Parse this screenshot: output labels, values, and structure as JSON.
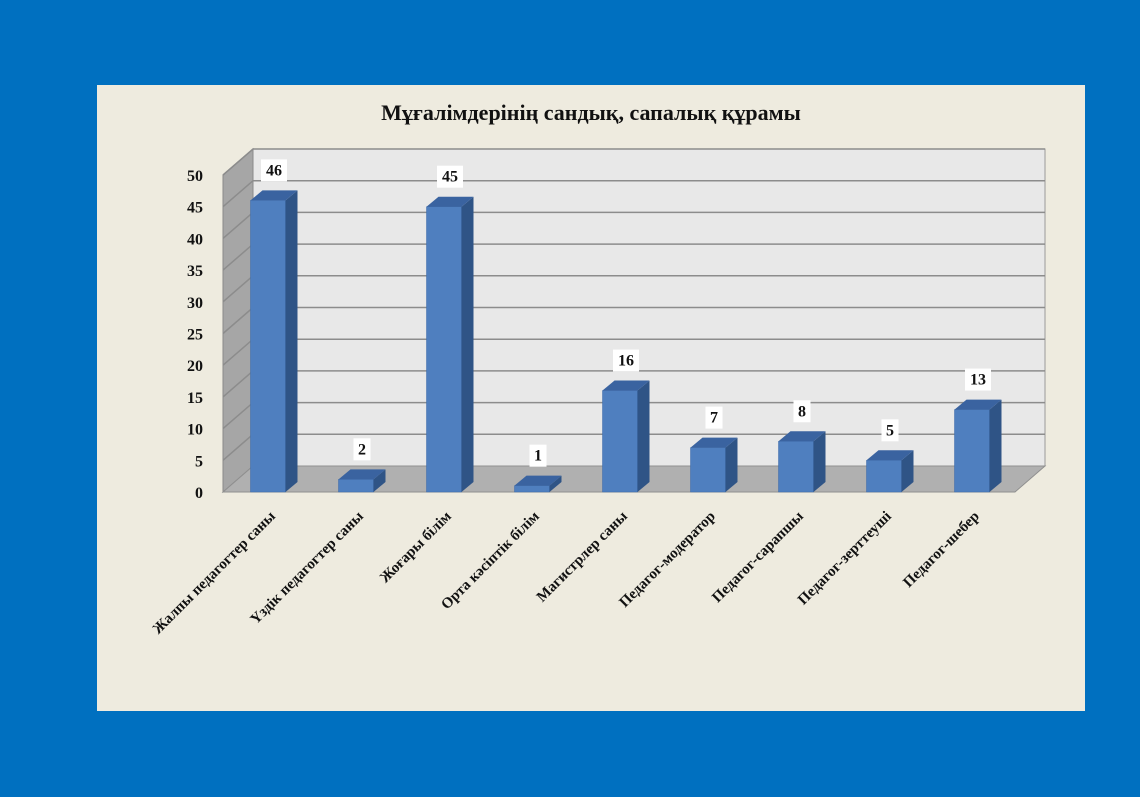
{
  "chart_data": {
    "type": "bar",
    "title": "Мұғалімдерінің сандық, сапалық құрамы",
    "categories": [
      "Жалпы педагогтер саны",
      "Үздік педагогтер саны",
      "Жоғары білім",
      "Орта кәсіптік білім",
      "Магистрлер саны",
      "Педагог-модератор",
      "Педагог-сарапшы",
      "Педагог-зерттеуші",
      "Педагог-шебер"
    ],
    "values": [
      46,
      2,
      45,
      1,
      16,
      7,
      8,
      5,
      13
    ],
    "y_ticks": [
      0,
      5,
      10,
      15,
      20,
      25,
      30,
      35,
      40,
      45,
      50
    ],
    "ylim": [
      0,
      50
    ],
    "xlabel": "",
    "ylabel": "",
    "grid": true,
    "legend": "none",
    "data_labels": true,
    "style": "3d-column",
    "colors": {
      "background": "#0070c0",
      "panel": "#eeebdf",
      "bar_front": "#4f7fbf",
      "bar_side": "#2f5486",
      "bar_top": "#3a63a0",
      "wall": "#e8e8e8",
      "floor": "#b0b0b0"
    }
  }
}
